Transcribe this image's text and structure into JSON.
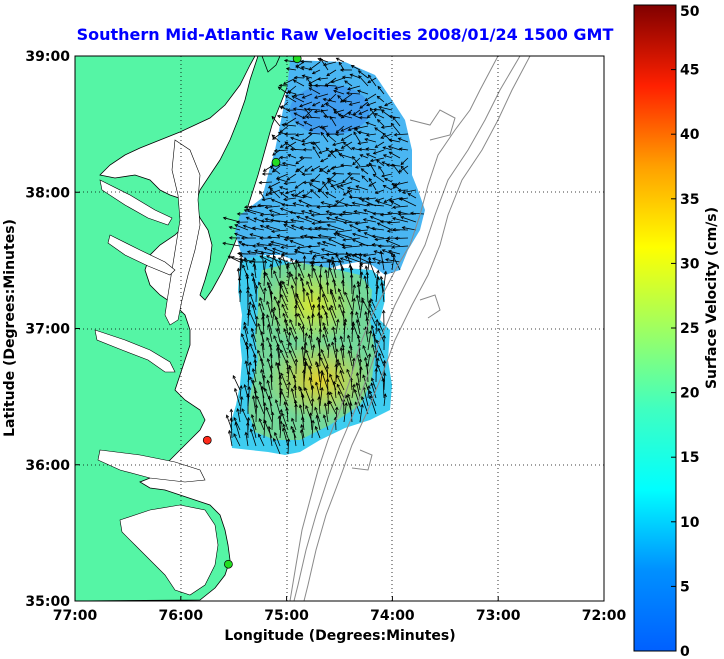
{
  "title": "Southern Mid-Atlantic Raw Velocities 2008/01/24 1500 GMT",
  "colors": {
    "title": "#0000ff",
    "land": "#55f5a5",
    "water": "#ffffff",
    "coast": "#000000",
    "bathymetry": "#8a8a8a",
    "arrow": "#000000",
    "station_ok": "#22dd22",
    "station_alert": "#ff2a1a",
    "grid": "#000000"
  },
  "map": {
    "xlabel": "Longitude (Degrees:Minutes)",
    "ylabel": "Latitude (Degrees:Minutes)",
    "lon_range": [
      -77,
      -72
    ],
    "lat_range": [
      35,
      39
    ],
    "lon_ticks": [
      {
        "value": -77,
        "label": "77:00"
      },
      {
        "value": -76,
        "label": "76:00"
      },
      {
        "value": -75,
        "label": "75:00"
      },
      {
        "value": -74,
        "label": "74:00"
      },
      {
        "value": -73,
        "label": "73:00"
      },
      {
        "value": -72,
        "label": "72:00"
      }
    ],
    "lat_ticks": [
      {
        "value": 39,
        "label": "39:00"
      },
      {
        "value": 38,
        "label": "38:00"
      },
      {
        "value": 37,
        "label": "37:00"
      },
      {
        "value": 36,
        "label": "36:00"
      },
      {
        "value": 35,
        "label": "35:00"
      }
    ],
    "grid": "dotted",
    "stations": [
      {
        "lon": -74.9,
        "lat": 38.98,
        "status": "ok"
      },
      {
        "lon": -75.1,
        "lat": 38.22,
        "status": "ok"
      },
      {
        "lon": -75.75,
        "lat": 36.18,
        "status": "alert"
      },
      {
        "lon": -75.55,
        "lat": 35.27,
        "status": "ok"
      }
    ]
  },
  "colorbar": {
    "label": "Surface Velocity (cm/s)",
    "min": 0,
    "max": 50,
    "ticks": [
      "0",
      "5",
      "10",
      "15",
      "20",
      "25",
      "30",
      "35",
      "40",
      "45",
      "50"
    ],
    "colormap": "jet"
  }
}
